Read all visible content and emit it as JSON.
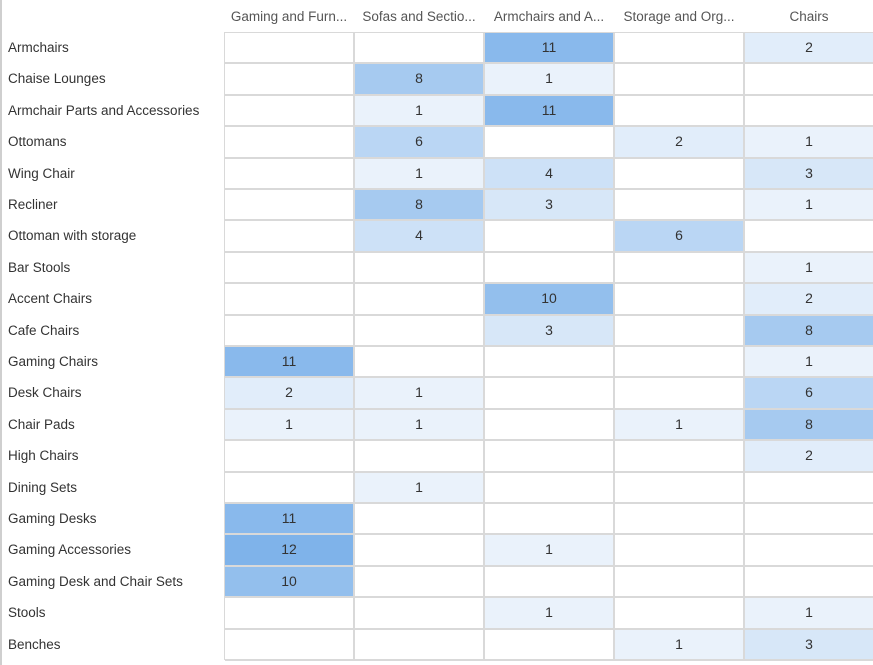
{
  "chart_data": {
    "type": "heatmap",
    "columns": [
      "Gaming and Furn...",
      "Sofas and Sectio...",
      "Armchairs and A...",
      "Storage and Org...",
      "Chairs"
    ],
    "rows": [
      "Armchairs",
      "Chaise Lounges",
      "Armchair Parts and Accessories",
      "Ottomans",
      "Wing Chair",
      "Recliner",
      "Ottoman with storage",
      "Bar Stools",
      "Accent Chairs",
      "Cafe Chairs",
      "Gaming Chairs",
      "Desk Chairs",
      "Chair Pads",
      "High Chairs",
      "Dining Sets",
      "Gaming Desks",
      "Gaming Accessories",
      "Gaming Desk and Chair Sets",
      "Stools",
      "Benches"
    ],
    "values": [
      [
        null,
        null,
        11,
        null,
        2
      ],
      [
        null,
        8,
        1,
        null,
        null
      ],
      [
        null,
        1,
        11,
        null,
        null
      ],
      [
        null,
        6,
        null,
        2,
        1
      ],
      [
        null,
        1,
        4,
        null,
        3
      ],
      [
        null,
        8,
        3,
        null,
        1
      ],
      [
        null,
        4,
        null,
        6,
        null
      ],
      [
        null,
        null,
        null,
        null,
        1
      ],
      [
        null,
        null,
        10,
        null,
        2
      ],
      [
        null,
        null,
        3,
        null,
        8
      ],
      [
        11,
        null,
        null,
        null,
        1
      ],
      [
        2,
        1,
        null,
        null,
        6
      ],
      [
        1,
        1,
        null,
        1,
        8
      ],
      [
        null,
        null,
        null,
        null,
        2
      ],
      [
        null,
        1,
        null,
        null,
        null
      ],
      [
        11,
        null,
        null,
        null,
        null
      ],
      [
        12,
        null,
        1,
        null,
        null
      ],
      [
        10,
        null,
        null,
        null,
        null
      ],
      [
        null,
        null,
        1,
        null,
        1
      ],
      [
        null,
        null,
        null,
        1,
        3
      ]
    ],
    "color_scale": {
      "min": 0,
      "max": 12,
      "low_color": "#f4f8fd",
      "high_color": "#7fb3ea"
    },
    "grid": true
  }
}
